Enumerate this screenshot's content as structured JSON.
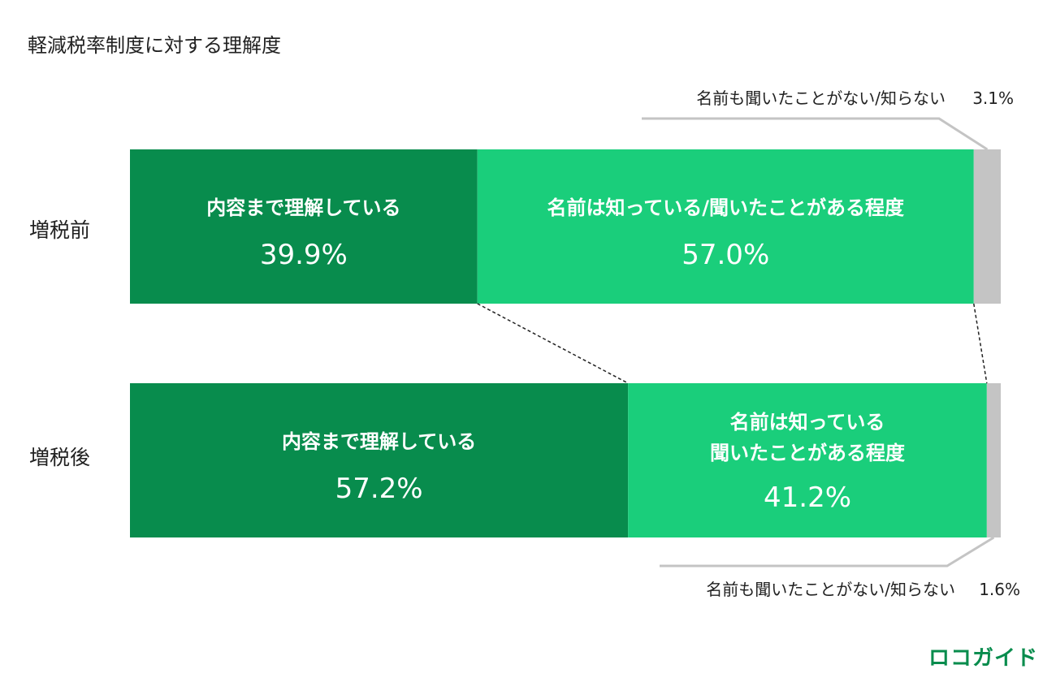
{
  "title": "軽減税率制度に対する理解度",
  "logo": "ロコガイド",
  "chart_data": {
    "type": "bar",
    "orientation": "horizontal",
    "stacked": true,
    "title": "軽減税率制度に対する理解度",
    "categories": [
      "増税前",
      "増税後"
    ],
    "series": [
      {
        "name": "内容まで理解している",
        "labels": [
          "内容まで理解している",
          "内容まで理解している"
        ],
        "values": [
          39.9,
          57.2
        ],
        "value_labels": [
          "39.9%",
          "57.2%"
        ],
        "color": "#088c4d"
      },
      {
        "name": "名前は知っている/聞いたことがある程度",
        "labels": [
          "名前は知っている/聞いたことがある程度",
          "名前は知っている\n聞いたことがある程度"
        ],
        "values": [
          57.0,
          41.2
        ],
        "value_labels": [
          "57.0%",
          "41.2%"
        ],
        "color": "#1ace7b"
      },
      {
        "name": "名前も聞いたことがない/知らない",
        "labels": [
          "名前も聞いたことがない/知らない",
          "名前も聞いたことがない/知らない"
        ],
        "values": [
          3.1,
          1.6
        ],
        "value_labels": [
          "3.1%",
          "1.6%"
        ],
        "color": "#c4c4c4"
      }
    ],
    "xlim": [
      0,
      100
    ],
    "legend": "none",
    "grid": false
  }
}
